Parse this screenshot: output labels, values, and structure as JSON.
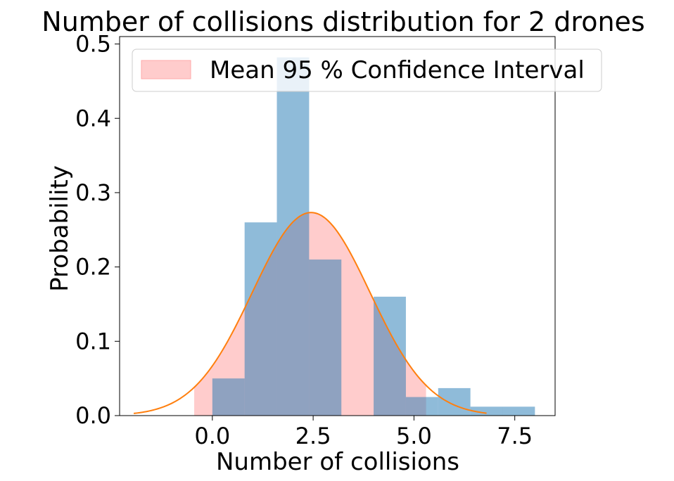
{
  "chart_data": {
    "type": "bar",
    "title": "Number of collisions distribution for 2 drones",
    "xlabel": "Number of collisions",
    "ylabel": "Probability",
    "xlim": [
      -2.3,
      8.5
    ],
    "ylim": [
      0,
      0.51
    ],
    "xticks": [
      0.0,
      2.5,
      5.0,
      7.5
    ],
    "xtick_labels": [
      "0.0",
      "2.5",
      "5.0",
      "7.5"
    ],
    "yticks": [
      0.0,
      0.1,
      0.2,
      0.3,
      0.4,
      0.5
    ],
    "ytick_labels": [
      "0.0",
      "0.1",
      "0.2",
      "0.3",
      "0.4",
      "0.5"
    ],
    "legend": {
      "label": "Mean 95 % Confidence Interval",
      "placement": "top"
    },
    "histogram": {
      "color": "#1f77b4",
      "bins": [
        {
          "x0": 0.0,
          "x1": 0.8,
          "value": 0.05
        },
        {
          "x0": 0.8,
          "x1": 1.6,
          "value": 0.26
        },
        {
          "x0": 1.6,
          "x1": 2.4,
          "value": 0.482
        },
        {
          "x0": 2.4,
          "x1": 3.2,
          "value": 0.21
        },
        {
          "x0": 3.2,
          "x1": 4.0,
          "value": 0.0
        },
        {
          "x0": 4.0,
          "x1": 4.8,
          "value": 0.16
        },
        {
          "x0": 4.8,
          "x1": 5.6,
          "value": 0.025
        },
        {
          "x0": 5.6,
          "x1": 6.4,
          "value": 0.037
        },
        {
          "x0": 6.4,
          "x1": 7.2,
          "value": 0.012
        },
        {
          "x0": 7.2,
          "x1": 8.0,
          "value": 0.012
        }
      ]
    },
    "confidence_interval": {
      "color": "#ffcccc",
      "x_from": -0.45,
      "x_to": 5.3
    },
    "fitted_curve": {
      "color": "#ff7f0e",
      "mean": 2.45,
      "sd": 1.46,
      "x_from": -1.95,
      "x_to": 6.8
    }
  }
}
